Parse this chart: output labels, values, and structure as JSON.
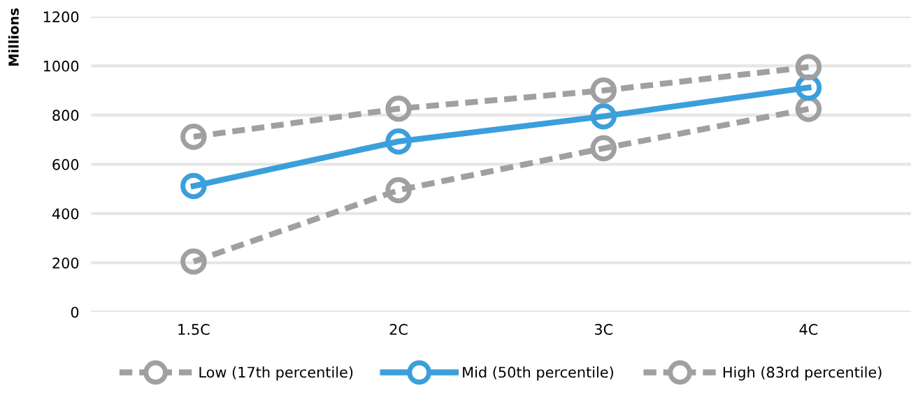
{
  "chart_data": {
    "type": "line",
    "ylabel": "Millions",
    "categories": [
      "1.5C",
      "2C",
      "3C",
      "4C"
    ],
    "series": [
      {
        "name": "Low (17th percentile)",
        "color": "#a0a0a0",
        "values": [
          205,
          495,
          665,
          825
        ],
        "line_style": "dashed"
      },
      {
        "name": "Mid (50th percentile)",
        "color": "#3b9fdb",
        "values": [
          512,
          693,
          795,
          912
        ],
        "line_style": "solid"
      },
      {
        "name": "High (83rd percentile)",
        "color": "#a0a0a0",
        "values": [
          712,
          826,
          900,
          995
        ],
        "line_style": "dashed"
      }
    ],
    "ylim": [
      0,
      1200
    ],
    "yticks": [
      0,
      200,
      400,
      600,
      800,
      1000,
      1200
    ],
    "grid": "y",
    "legend": "bottom",
    "marker": "circle"
  }
}
